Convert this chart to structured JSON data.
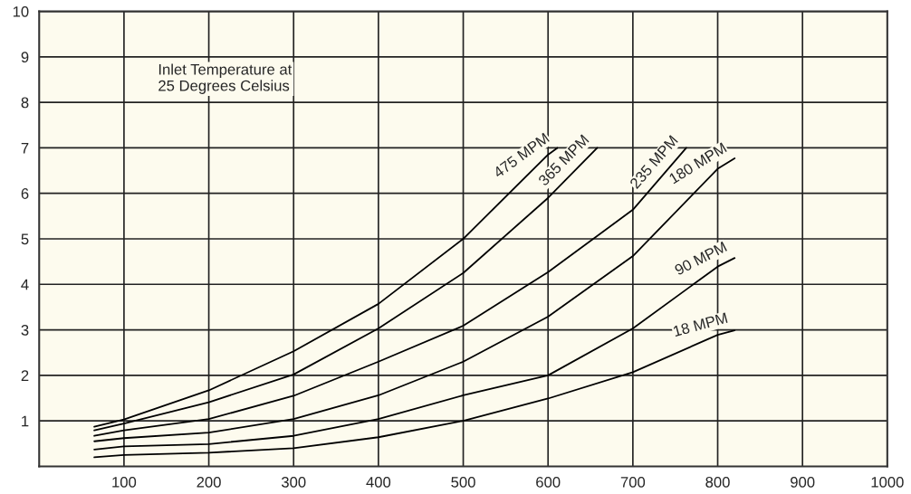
{
  "chart_data": {
    "type": "line",
    "annotations": [
      "Inlet Temperature at\n25 Degrees Celsius"
    ],
    "series": [
      {
        "name": "475 MPM",
        "color": "#000000",
        "x": [
          65,
          100,
          200,
          300,
          400,
          500,
          600,
          611
        ],
        "values": [
          0.87,
          1.03,
          1.67,
          2.53,
          3.57,
          5.0,
          6.85,
          7.0
        ]
      },
      {
        "name": "365 MPM",
        "color": "#000000",
        "x": [
          65,
          100,
          200,
          300,
          400,
          500,
          600,
          658
        ],
        "values": [
          0.79,
          0.94,
          1.41,
          2.02,
          3.03,
          4.25,
          5.9,
          7.0
        ]
      },
      {
        "name": "235 MPM",
        "color": "#000000",
        "x": [
          65,
          100,
          200,
          300,
          400,
          500,
          600,
          700,
          763
        ],
        "values": [
          0.67,
          0.79,
          1.04,
          1.55,
          2.3,
          3.09,
          4.27,
          5.64,
          7.0
        ]
      },
      {
        "name": "180 MPM",
        "color": "#000000",
        "x": [
          65,
          100,
          200,
          300,
          400,
          500,
          600,
          700,
          800,
          820
        ],
        "values": [
          0.55,
          0.62,
          0.74,
          1.04,
          1.56,
          2.3,
          3.29,
          4.62,
          6.54,
          6.77
        ]
      },
      {
        "name": "90 MPM",
        "color": "#000000",
        "x": [
          65,
          100,
          200,
          300,
          400,
          500,
          600,
          700,
          800,
          820
        ],
        "values": [
          0.37,
          0.44,
          0.49,
          0.67,
          1.04,
          1.56,
          2.0,
          3.03,
          4.39,
          4.58
        ]
      },
      {
        "name": "18 MPM",
        "color": "#000000",
        "x": [
          65,
          100,
          200,
          300,
          400,
          500,
          600,
          700,
          800,
          820
        ],
        "values": [
          0.2,
          0.25,
          0.3,
          0.4,
          0.64,
          1.0,
          1.49,
          2.07,
          2.89,
          2.99
        ]
      }
    ],
    "xlim": [
      0,
      1000
    ],
    "xticks": [
      100,
      200,
      300,
      400,
      500,
      600,
      700,
      800,
      900,
      1000
    ],
    "ylim": [
      0,
      10
    ],
    "yticks": [
      1,
      2,
      3,
      4,
      5,
      6,
      7,
      8,
      9,
      10
    ],
    "grid": true,
    "legend": false,
    "marker": "none",
    "line_style": "solid"
  }
}
